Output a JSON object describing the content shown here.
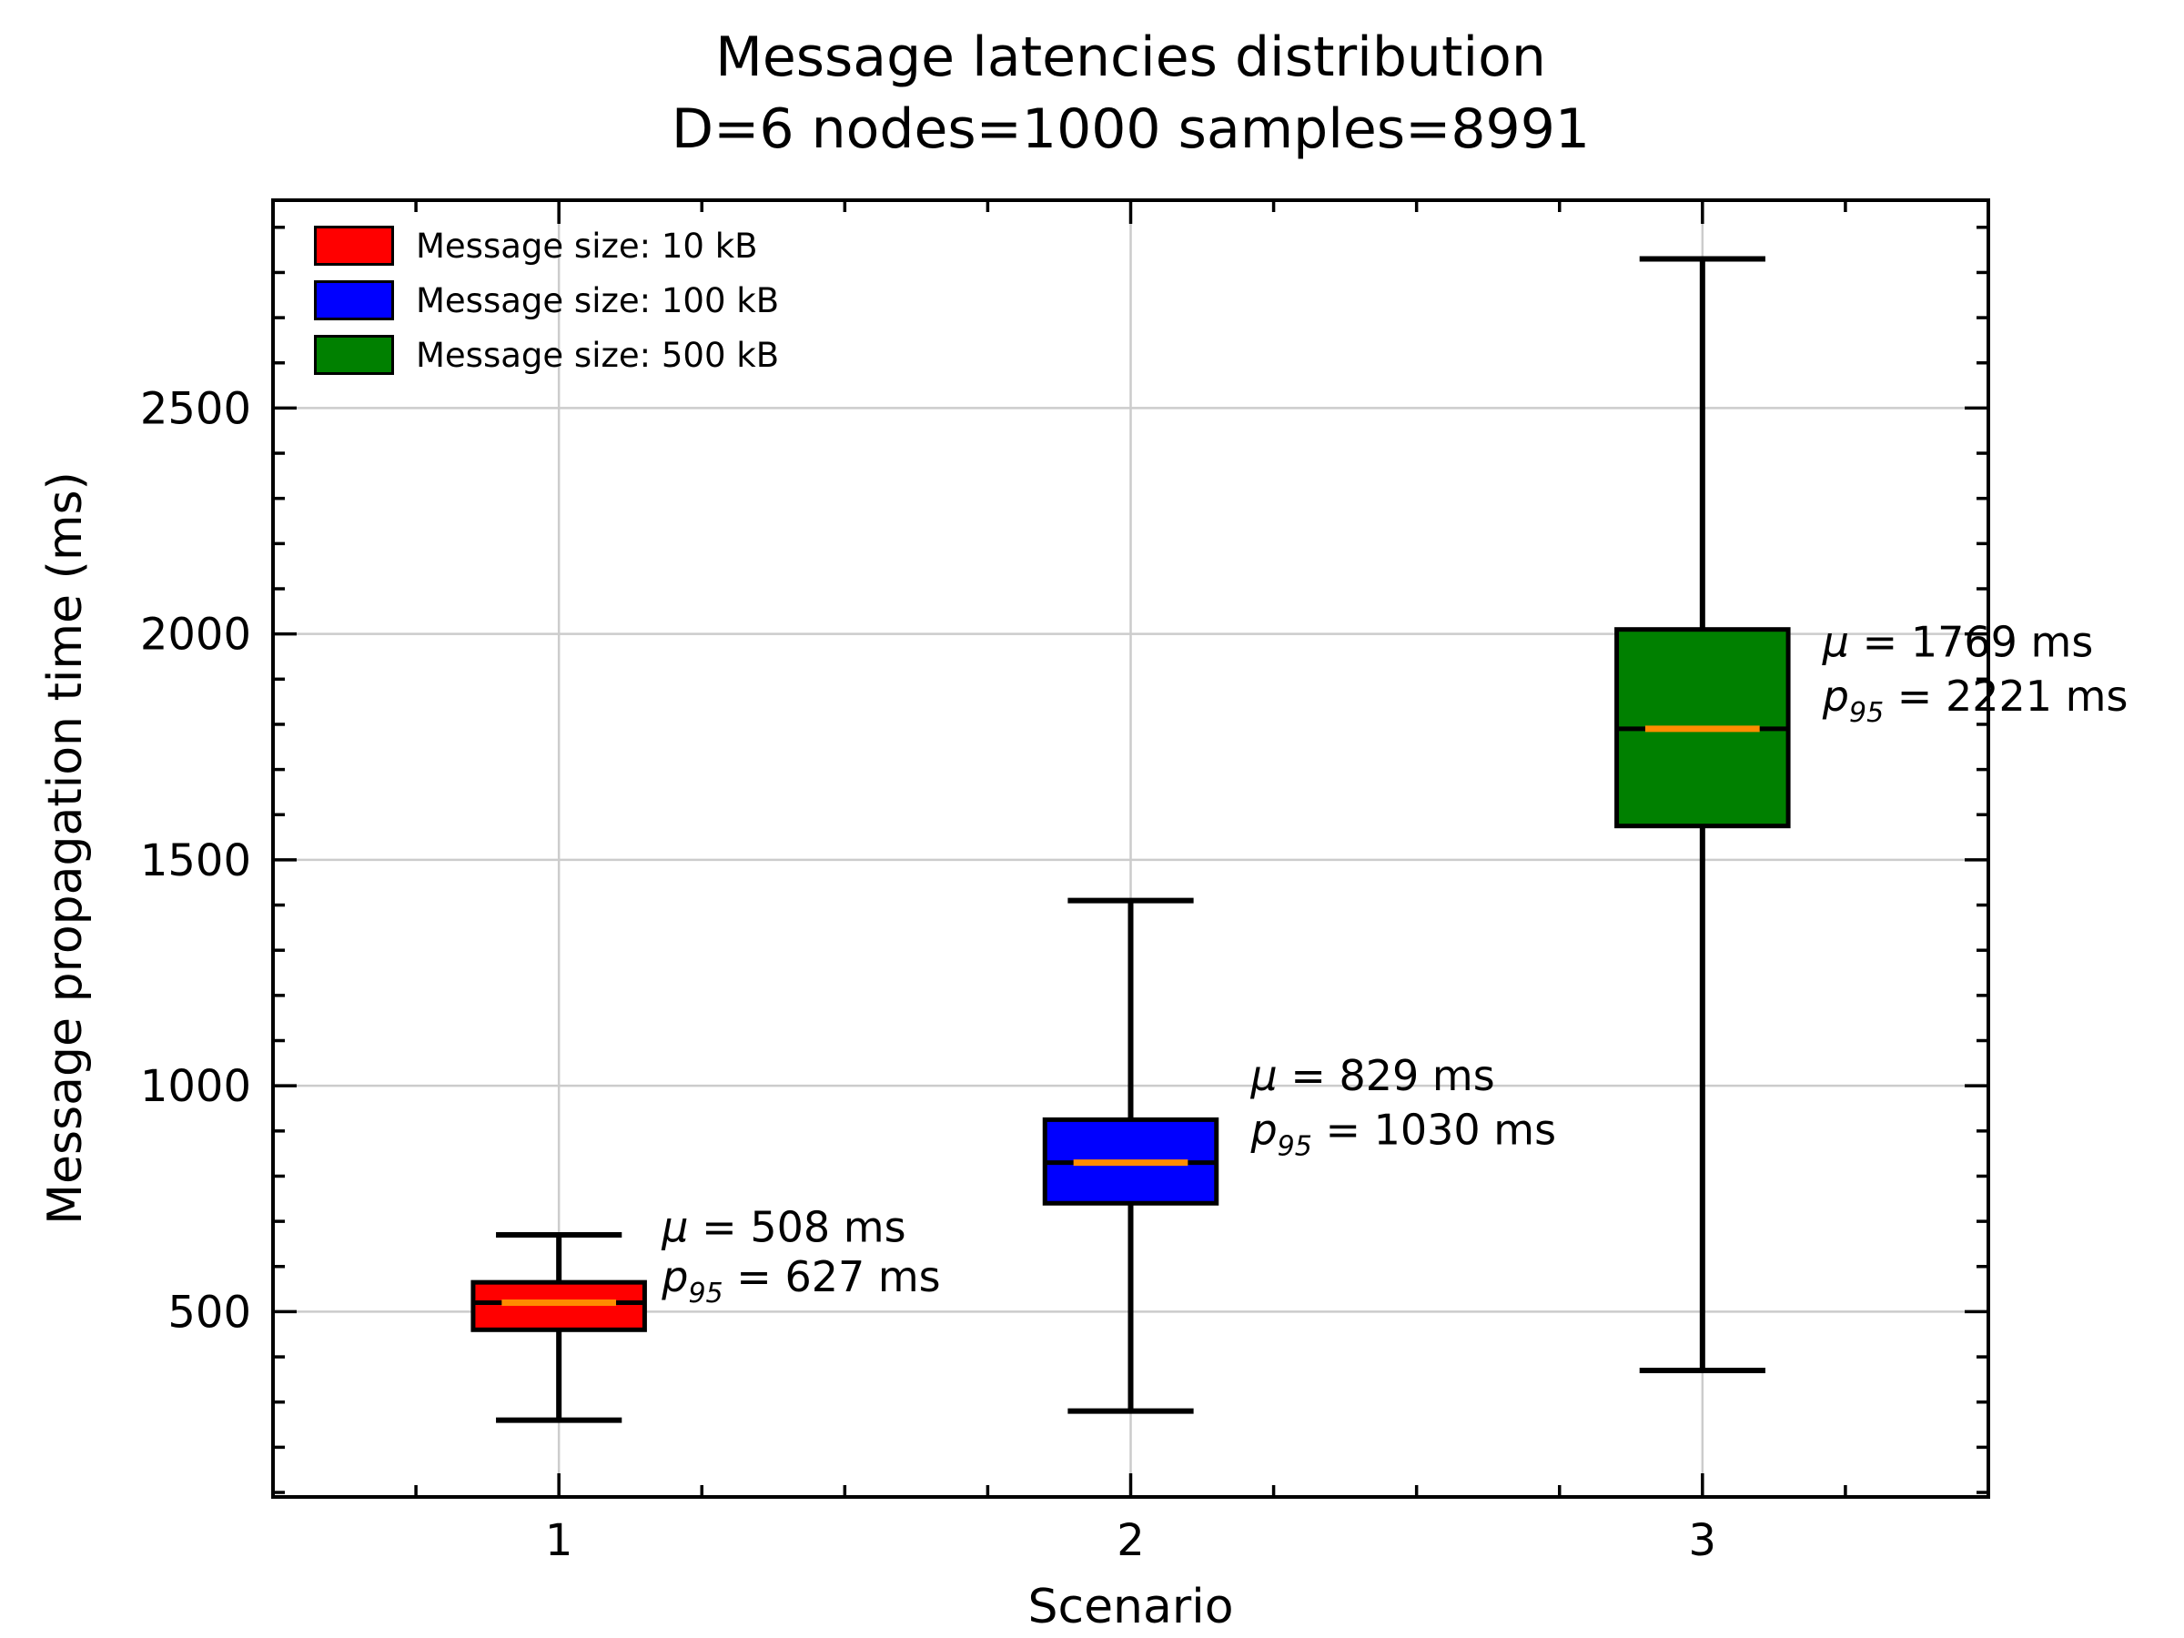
{
  "title": {
    "line1": "Message latencies distribution",
    "line2": "D=6 nodes=1000 samples=8991"
  },
  "chart_data": {
    "type": "boxplot",
    "title": "Message latencies distribution D=6 nodes=1000 samples=8991",
    "xlabel": "Scenario",
    "ylabel": "Message propagation time (ms)",
    "xlim": [
      0.5,
      3.5
    ],
    "ylim": [
      90,
      2960
    ],
    "xticks": [
      1,
      2,
      3
    ],
    "yticks": [
      500,
      1000,
      1500,
      2000,
      2500
    ],
    "grid": true,
    "legend_position": "upper-left",
    "median_color": "#ff8c00",
    "legend": {
      "items": [
        {
          "label": "Message size: 10 kB",
          "color": "#ff0000"
        },
        {
          "label": "Message size: 100 kB",
          "color": "#0000ff"
        },
        {
          "label": "Message size: 500 kB",
          "color": "#008000"
        }
      ]
    },
    "boxes": [
      {
        "scenario": 1,
        "series": "Message size: 10 kB",
        "color": "#ff0000",
        "whisker_low": 260,
        "q1": 460,
        "median": 520,
        "q3": 565,
        "whisker_high": 670,
        "mean_ms": 508,
        "p95_ms": 627,
        "annotation": {
          "x": 1.18,
          "lines": [
            {
              "sym": "μ",
              "sub": "",
              "rest": " =  508 ms",
              "y": 655
            },
            {
              "sym": "p",
              "sub": "95",
              "rest": " =  627 ms",
              "y": 545
            }
          ]
        }
      },
      {
        "scenario": 2,
        "series": "Message size: 100 kB",
        "color": "#0000ff",
        "whisker_low": 280,
        "q1": 740,
        "median": 830,
        "q3": 925,
        "whisker_high": 1410,
        "mean_ms": 829,
        "p95_ms": 1030,
        "annotation": {
          "x": 2.21,
          "lines": [
            {
              "sym": "μ",
              "sub": "",
              "rest": " =  829 ms",
              "y": 990
            },
            {
              "sym": "p",
              "sub": "95",
              "rest": " =  1030 ms",
              "y": 870
            }
          ]
        }
      },
      {
        "scenario": 3,
        "series": "Message size: 500 kB",
        "color": "#008000",
        "whisker_low": 370,
        "q1": 1575,
        "median": 1790,
        "q3": 2010,
        "whisker_high": 2830,
        "mean_ms": 1769,
        "p95_ms": 2221,
        "annotation": {
          "x": 3.21,
          "lines": [
            {
              "sym": "μ",
              "sub": "",
              "rest": " =  1769 ms",
              "y": 1950
            },
            {
              "sym": "p",
              "sub": "95",
              "rest": " =  2221 ms",
              "y": 1830
            }
          ]
        }
      }
    ]
  }
}
